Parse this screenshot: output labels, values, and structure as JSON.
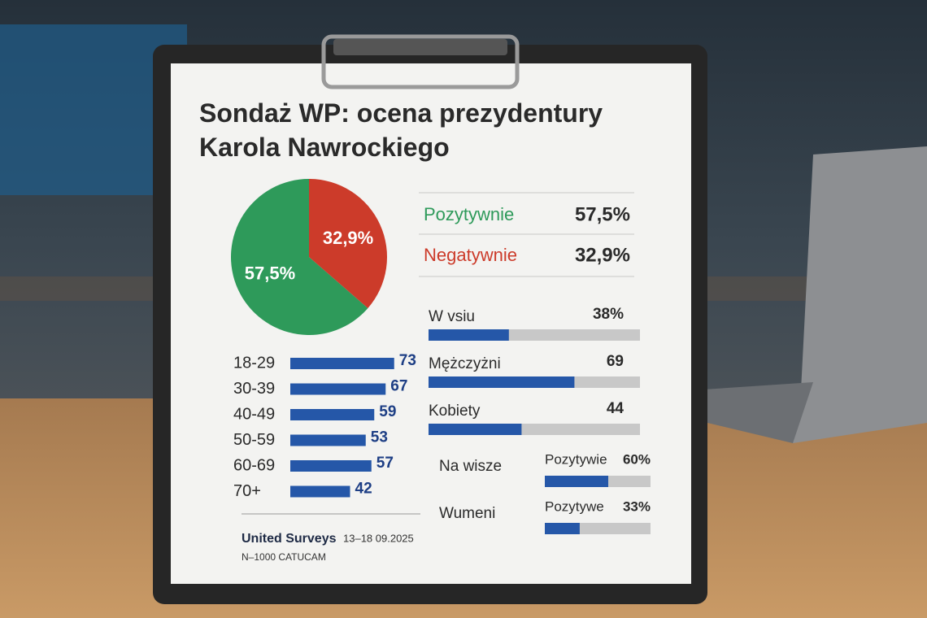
{
  "chart_data": [
    {
      "type": "pie",
      "title": "Sondaż WP: ocena prezydentury Karola Nawrockiego",
      "categories": [
        "Pozytywnie",
        "Negatywnie"
      ],
      "values": [
        57.5,
        32.9
      ],
      "value_labels": [
        "57,5%",
        "32,9%"
      ],
      "colors": [
        "#2e9a5a",
        "#cc3b2a"
      ]
    },
    {
      "type": "bar",
      "categories": [
        "18-29",
        "30-39",
        "40-49",
        "50-59",
        "60-69",
        "70+"
      ],
      "values": [
        73,
        67,
        59,
        53,
        57,
        42
      ],
      "color": "#2557a8"
    },
    {
      "type": "progress",
      "categories": [
        "W vsiu",
        "Mężczyżni",
        "Kobiety"
      ],
      "values": [
        38,
        69,
        44
      ],
      "value_labels": [
        "38%",
        "69",
        "44"
      ],
      "color": "#2557a8",
      "track_color": "#c8c8c8"
    },
    {
      "type": "progress",
      "categories": [
        "Na wisze",
        "Wumeni"
      ],
      "labels": [
        "Pozytywie",
        "Pozytywe"
      ],
      "values": [
        60,
        33
      ],
      "value_labels": [
        "60%",
        "33%"
      ],
      "color": "#2557a8",
      "track_color": "#c8c8c8"
    }
  ],
  "footer": {
    "source": "United Surveys",
    "date": "13–18 09.2025",
    "sample": "N–1000 CATUCAM"
  }
}
